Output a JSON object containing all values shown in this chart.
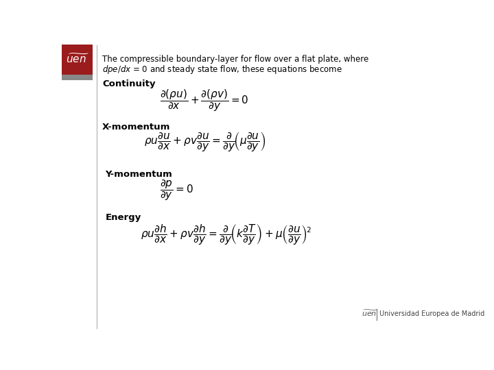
{
  "slide_bg": "#ffffff",
  "logo_red": "#9B1C1C",
  "logo_gray": "#888888",
  "title_line1": "The compressible boundary-layer for flow over a flat plate, where",
  "title_line2_normal": " = 0 and steady state flow, these equations become",
  "section_continuity": "Continuity",
  "section_xmom": "X-momentum",
  "section_ymom": "Y-momentum",
  "section_energy": "Energy",
  "footer_text": "Universidad Europea de Madrid",
  "text_color": "#000000",
  "footer_color": "#444444"
}
